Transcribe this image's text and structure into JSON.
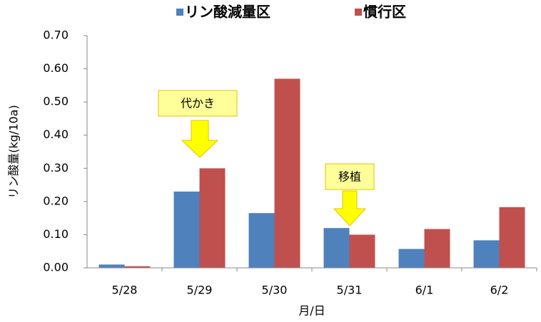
{
  "chart_data": {
    "type": "bar",
    "categories": [
      "5/28",
      "5/29",
      "5/30",
      "5/31",
      "6/1",
      "6/2"
    ],
    "series": [
      {
        "name": "リン酸減量区",
        "color": "#4f81bd",
        "values": [
          0.01,
          0.23,
          0.165,
          0.12,
          0.057,
          0.083
        ]
      },
      {
        "name": "慣行区",
        "color": "#c0504d",
        "values": [
          0.005,
          0.3,
          0.57,
          0.1,
          0.117,
          0.183
        ]
      }
    ],
    "ylim": [
      0,
      0.7
    ],
    "yticks": [
      {
        "value": 0,
        "label": "0.00"
      },
      {
        "value": 0.1,
        "label": "0.10"
      },
      {
        "value": 0.2,
        "label": "0.20"
      },
      {
        "value": 0.3,
        "label": "0.30"
      },
      {
        "value": 0.4,
        "label": "0.40"
      },
      {
        "value": 0.5,
        "label": "0.50"
      },
      {
        "value": 0.6,
        "label": "0.60"
      },
      {
        "value": 0.7,
        "label": "0.70"
      }
    ],
    "ylabel": "リン酸量(kg/10a)",
    "xlabel": "月/日",
    "legend": "top",
    "annotations": [
      "代かき",
      "移植"
    ]
  }
}
